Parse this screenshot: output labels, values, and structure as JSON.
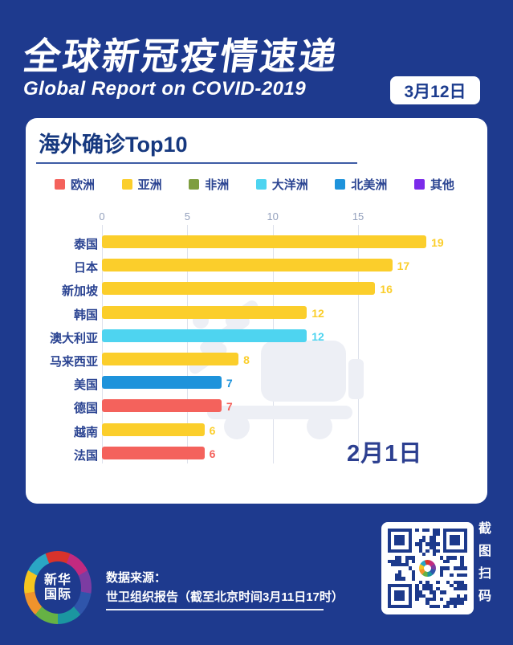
{
  "page": {
    "bg": "#1E3A8E",
    "dark_blue_text": "#1C3C8E"
  },
  "header": {
    "title": "全球新冠疫情速递",
    "subtitle": "Global Report on COVID-2019",
    "date_badge": "3月12日"
  },
  "card": {
    "title": "海外确诊Top10",
    "underline_color": "#3E5CA5",
    "title_color": "#16387F"
  },
  "chart_data": {
    "type": "bar",
    "orientation": "horizontal",
    "title": "海外确诊Top10",
    "frame_date_label": "2月1日",
    "x_ticks": [
      0,
      5,
      10,
      15
    ],
    "xlim": [
      0,
      22.5
    ],
    "grid": true,
    "legend_position": "top",
    "legend": [
      {
        "label": "欧洲",
        "color": "#F4625C"
      },
      {
        "label": "亚洲",
        "color": "#FBCE2B"
      },
      {
        "label": "非洲",
        "color": "#7E9E3F"
      },
      {
        "label": "大洋洲",
        "color": "#4ED4F0"
      },
      {
        "label": "北美洲",
        "color": "#1E93DB"
      },
      {
        "label": "其他",
        "color": "#7B2BEA"
      }
    ],
    "categories": [
      "泰国",
      "日本",
      "新加坡",
      "韩国",
      "澳大利亚",
      "马来西亚",
      "美国",
      "德国",
      "越南",
      "法国"
    ],
    "values": [
      19,
      17,
      16,
      12,
      12,
      8,
      7,
      7,
      6,
      6
    ],
    "groups": [
      "亚洲",
      "亚洲",
      "亚洲",
      "亚洲",
      "大洋洲",
      "亚洲",
      "北美洲",
      "欧洲",
      "亚洲",
      "欧洲"
    ],
    "label_color": "#2B4492",
    "tick_color": "#94A1BD",
    "date_color": "#2C3F90"
  },
  "footer": {
    "source_label": "数据来源：",
    "source_detail": "世卫组织报告（截至北京时间3月11日17时）",
    "logo_line1": "新华",
    "logo_line2": "国际",
    "logo_ring_colors": [
      "#D8332B",
      "#C22A80",
      "#7C3CA2",
      "#2F55AB",
      "#1B96A0",
      "#66B244",
      "#EF932C",
      "#F5C51F",
      "#2AA6C4"
    ],
    "qr_caption": "截图扫码",
    "qr_module_color": "#1D3A8C"
  }
}
